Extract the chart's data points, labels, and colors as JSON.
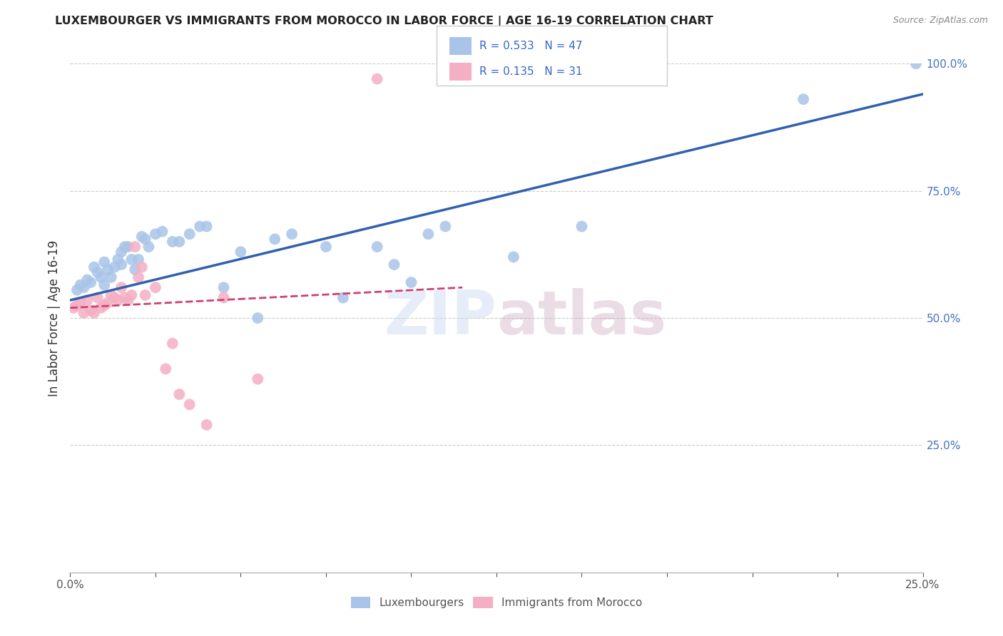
{
  "title": "LUXEMBOURGER VS IMMIGRANTS FROM MOROCCO IN LABOR FORCE | AGE 16-19 CORRELATION CHART",
  "source": "Source: ZipAtlas.com",
  "ylabel": "In Labor Force | Age 16-19",
  "xlim": [
    0.0,
    0.25
  ],
  "ylim": [
    0.0,
    1.0
  ],
  "blue_color": "#a8c4e8",
  "pink_color": "#f4afc4",
  "blue_line_color": "#3060b0",
  "pink_line_color": "#d04070",
  "right_axis_color": "#4472C4",
  "legend_R1": "0.533",
  "legend_N1": "47",
  "legend_R2": "0.135",
  "legend_N2": "31",
  "blue_scatter_x": [
    0.002,
    0.003,
    0.004,
    0.005,
    0.006,
    0.007,
    0.008,
    0.009,
    0.01,
    0.01,
    0.011,
    0.012,
    0.013,
    0.014,
    0.015,
    0.015,
    0.016,
    0.017,
    0.018,
    0.019,
    0.02,
    0.021,
    0.022,
    0.023,
    0.025,
    0.027,
    0.03,
    0.032,
    0.035,
    0.038,
    0.04,
    0.045,
    0.05,
    0.055,
    0.06,
    0.065,
    0.075,
    0.08,
    0.09,
    0.095,
    0.1,
    0.105,
    0.11,
    0.13,
    0.15,
    0.215,
    0.248
  ],
  "blue_scatter_y": [
    0.555,
    0.565,
    0.56,
    0.575,
    0.57,
    0.6,
    0.59,
    0.58,
    0.565,
    0.61,
    0.595,
    0.58,
    0.6,
    0.615,
    0.605,
    0.63,
    0.64,
    0.64,
    0.615,
    0.595,
    0.615,
    0.66,
    0.655,
    0.64,
    0.665,
    0.67,
    0.65,
    0.65,
    0.665,
    0.68,
    0.68,
    0.56,
    0.63,
    0.5,
    0.655,
    0.665,
    0.64,
    0.54,
    0.64,
    0.605,
    0.57,
    0.665,
    0.68,
    0.62,
    0.68,
    0.93,
    1.0
  ],
  "pink_scatter_x": [
    0.001,
    0.002,
    0.003,
    0.004,
    0.005,
    0.006,
    0.007,
    0.008,
    0.009,
    0.01,
    0.011,
    0.012,
    0.013,
    0.014,
    0.015,
    0.016,
    0.017,
    0.018,
    0.019,
    0.02,
    0.021,
    0.022,
    0.025,
    0.028,
    0.03,
    0.032,
    0.035,
    0.04,
    0.045,
    0.055,
    0.09
  ],
  "pink_scatter_y": [
    0.52,
    0.525,
    0.53,
    0.51,
    0.535,
    0.515,
    0.51,
    0.54,
    0.52,
    0.525,
    0.53,
    0.545,
    0.54,
    0.535,
    0.56,
    0.54,
    0.535,
    0.545,
    0.64,
    0.58,
    0.6,
    0.545,
    0.56,
    0.4,
    0.45,
    0.35,
    0.33,
    0.29,
    0.54,
    0.38,
    0.97
  ],
  "blue_trend_x0": 0.0,
  "blue_trend_y0": 0.535,
  "blue_trend_x1": 0.25,
  "blue_trend_y1": 0.94,
  "pink_trend_x0": 0.0,
  "pink_trend_y0": 0.52,
  "pink_trend_x1": 0.115,
  "pink_trend_y1": 0.56
}
